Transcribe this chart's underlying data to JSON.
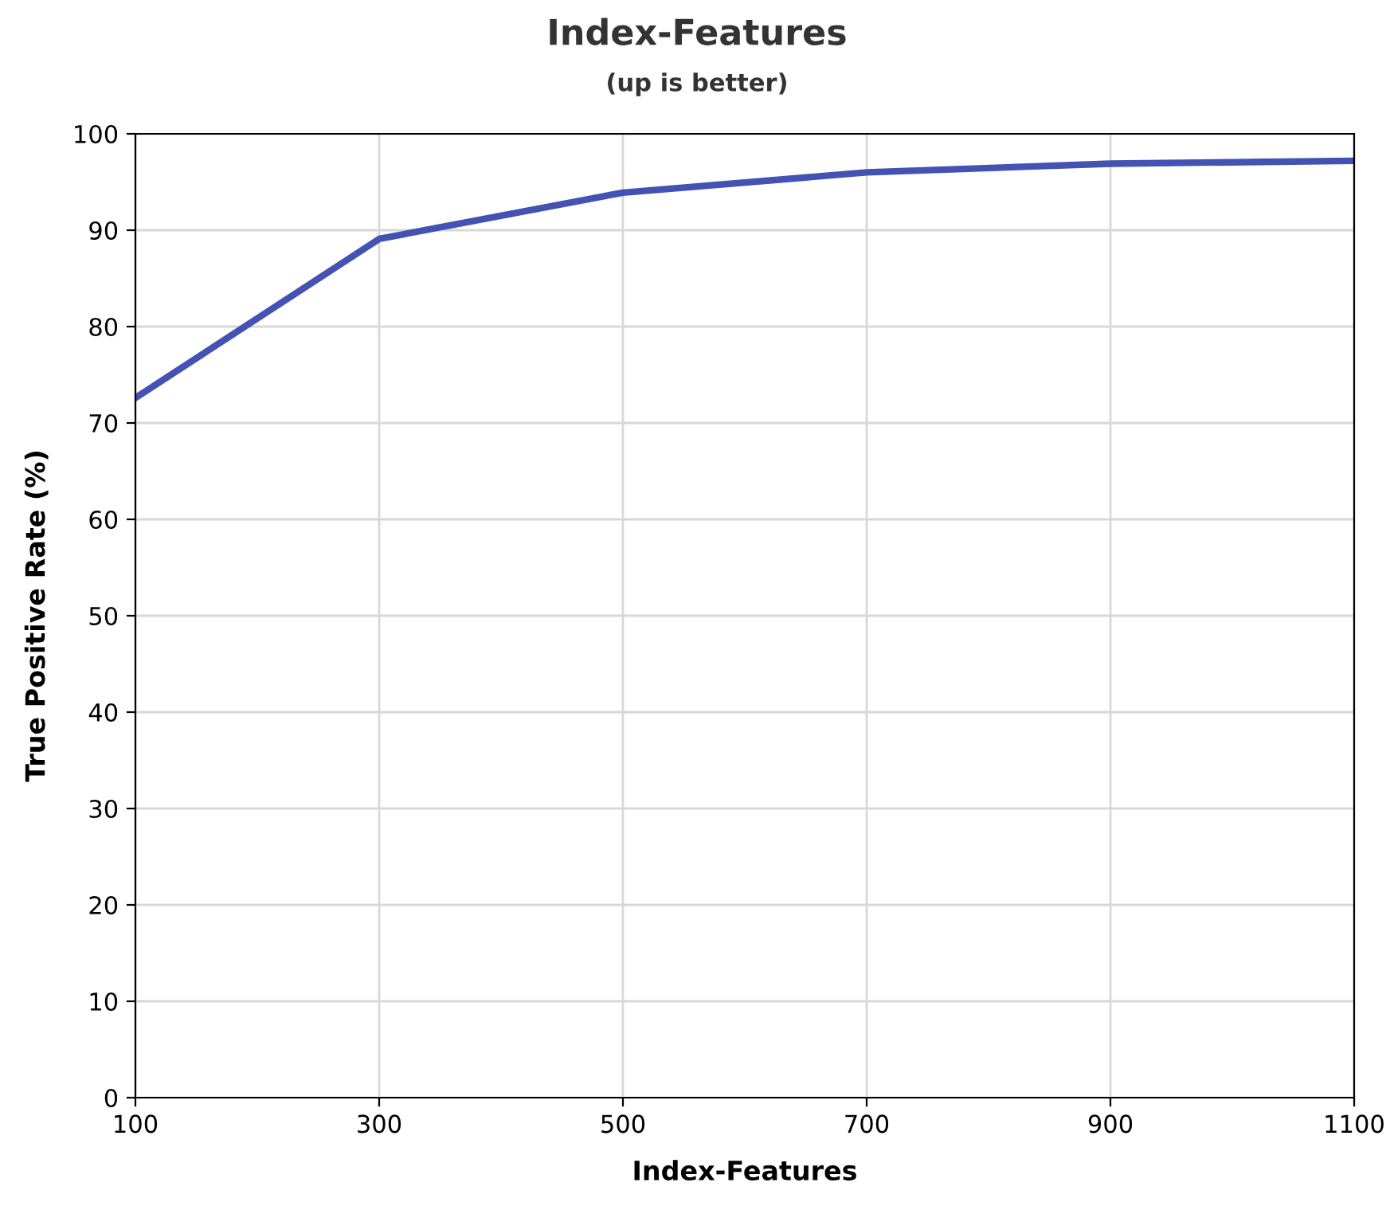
{
  "chart_data": {
    "type": "line",
    "title": "Index-Features",
    "subtitle": "(up is better)",
    "xlabel": "Index-Features",
    "ylabel": "True Positive Rate (%)",
    "x": [
      100,
      300,
      500,
      700,
      900,
      1100
    ],
    "series": [
      {
        "color": "#4352b3",
        "values": [
          72.6,
          89.1,
          93.9,
          96.0,
          96.9,
          97.2
        ]
      }
    ],
    "xlim": [
      100,
      1100
    ],
    "xticks": [
      100,
      300,
      500,
      700,
      900,
      1100
    ],
    "ylim": [
      0,
      100
    ],
    "yticks": [
      0,
      10,
      20,
      30,
      40,
      50,
      60,
      70,
      80,
      90,
      100
    ],
    "grid": true,
    "marker": "none",
    "line_style": "solid"
  }
}
